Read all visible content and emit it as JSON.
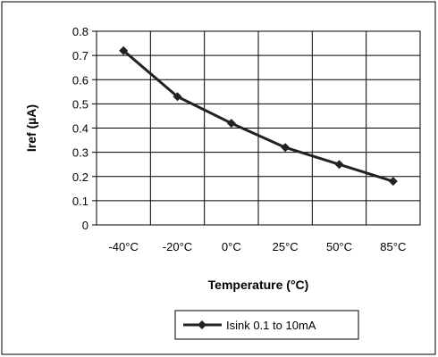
{
  "chart_data": {
    "type": "line",
    "title": "",
    "xlabel": "Temperature (°C)",
    "ylabel": "Iref (µA)",
    "categories": [
      "-40°C",
      "-20°C",
      "0°C",
      "25°C",
      "50°C",
      "85°C"
    ],
    "series": [
      {
        "name": "Isink 0.1 to 10mA",
        "values": [
          0.72,
          0.53,
          0.42,
          0.32,
          0.25,
          0.18
        ]
      }
    ],
    "ylim": [
      0,
      0.8
    ],
    "yticks": [
      "0",
      "0.1",
      "0.2",
      "0.3",
      "0.4",
      "0.5",
      "0.6",
      "0.7",
      "0.8"
    ],
    "grid": true,
    "legend_position": "bottom",
    "colors": {
      "line": "#222222",
      "grid": "#000000",
      "frame": "#000000"
    }
  }
}
